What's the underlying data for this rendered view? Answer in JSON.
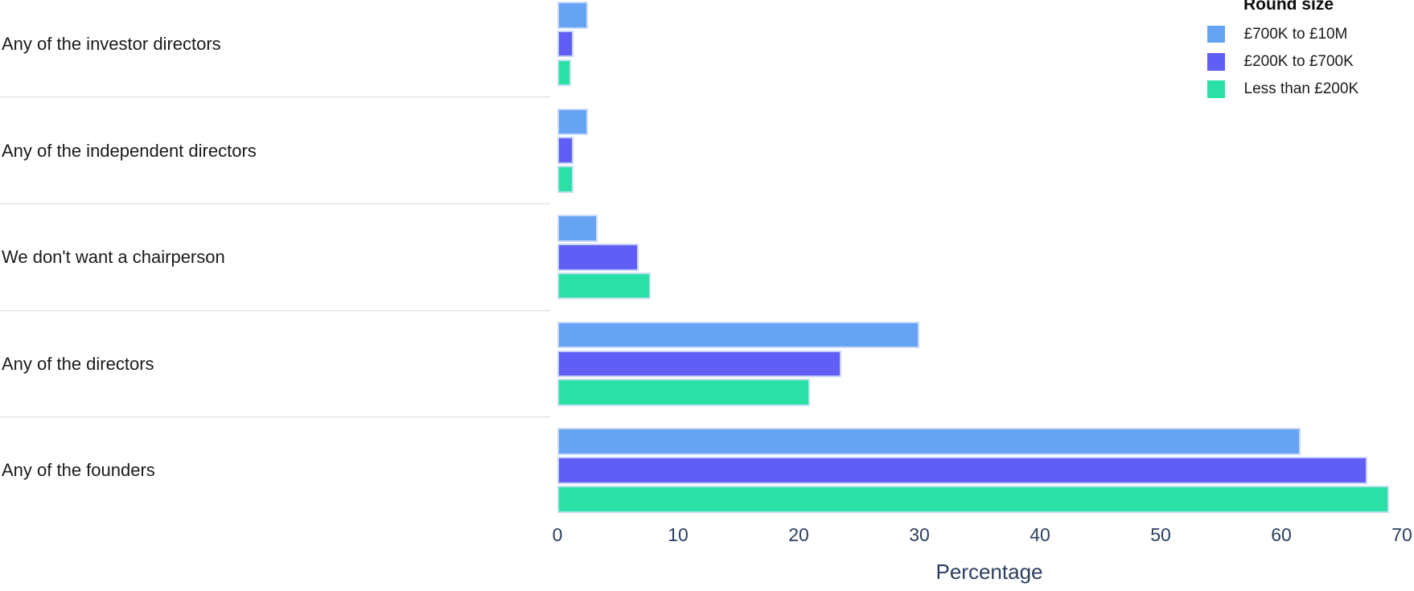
{
  "chart_data": {
    "type": "bar",
    "orientation": "horizontal",
    "title": "",
    "xlabel": "Percentage",
    "ylabel": "",
    "xlim": [
      0,
      70
    ],
    "xticks": [
      0,
      10,
      20,
      30,
      40,
      50,
      60,
      70
    ],
    "grid": false,
    "legend_title": "Round size",
    "legend_position": "top-right",
    "categories": [
      "Any of the investor directors",
      "Any of the independent directors",
      "We don't want a chairperson",
      "Any of the directors",
      "Any of the founders"
    ],
    "series": [
      {
        "name": "£700K to £10M",
        "color": "#67a3f3",
        "values": [
          2.5,
          2.5,
          3.3,
          30.0,
          61.6
        ]
      },
      {
        "name": "£200K to £700K",
        "color": "#615ef5",
        "values": [
          1.3,
          1.3,
          6.7,
          23.5,
          67.1
        ]
      },
      {
        "name": "Less than £200K",
        "color": "#2ae0a5",
        "values": [
          1.1,
          1.3,
          7.7,
          20.9,
          68.9
        ]
      }
    ],
    "colors": {
      "axis_text": "#2a3f5f",
      "category_text": "#1a1a1a",
      "divider": "#d9d9d9",
      "bar_border": "#d3e1fa"
    }
  }
}
